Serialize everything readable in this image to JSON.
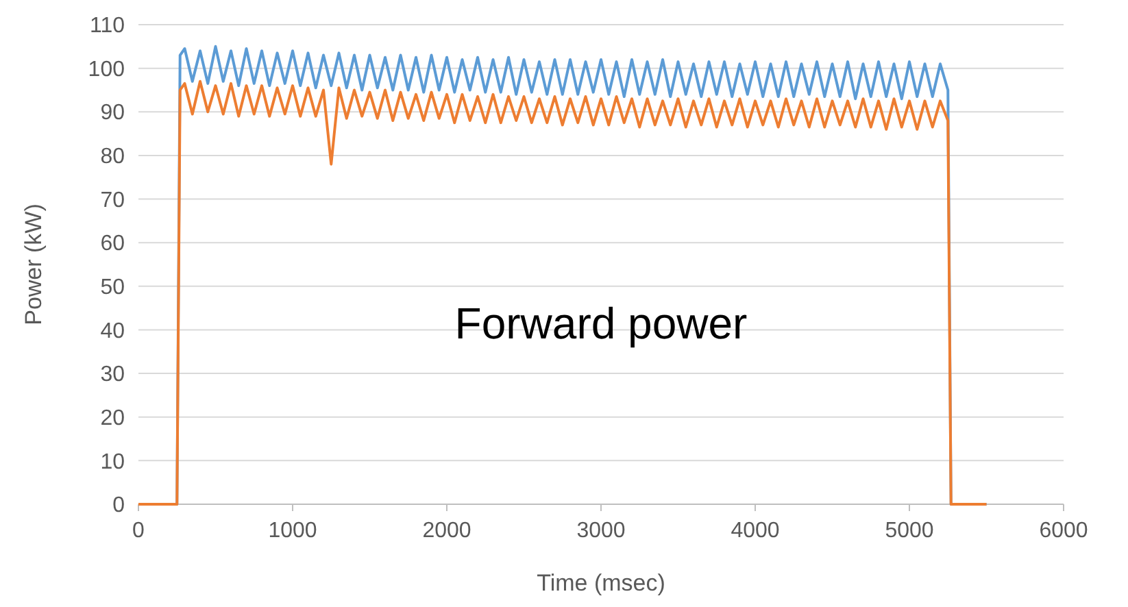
{
  "chart_data": {
    "type": "line",
    "xlabel": "Time (msec)",
    "ylabel": "Power (kW)",
    "annotations": [
      "Forward power"
    ],
    "x": [
      0,
      250,
      270,
      300,
      350,
      400,
      450,
      500,
      550,
      600,
      650,
      700,
      750,
      800,
      850,
      900,
      950,
      1000,
      1050,
      1100,
      1150,
      1200,
      1250,
      1300,
      1350,
      1400,
      1450,
      1500,
      1550,
      1600,
      1650,
      1700,
      1750,
      1800,
      1850,
      1900,
      1950,
      2000,
      2050,
      2100,
      2150,
      2200,
      2250,
      2300,
      2350,
      2400,
      2450,
      2500,
      2550,
      2600,
      2650,
      2700,
      2750,
      2800,
      2850,
      2900,
      2950,
      3000,
      3050,
      3100,
      3150,
      3200,
      3250,
      3300,
      3350,
      3400,
      3450,
      3500,
      3550,
      3600,
      3650,
      3700,
      3750,
      3800,
      3850,
      3900,
      3950,
      4000,
      4050,
      4100,
      4150,
      4200,
      4250,
      4300,
      4350,
      4400,
      4450,
      4500,
      4550,
      4600,
      4650,
      4700,
      4750,
      4800,
      4850,
      4900,
      4950,
      5000,
      5050,
      5100,
      5150,
      5200,
      5250,
      5270,
      5500
    ],
    "series": [
      {
        "color": "#5b9bd5",
        "values": [
          0,
          0,
          103,
          104.5,
          97,
          104,
          96.5,
          105,
          97,
          104,
          96,
          104.5,
          96.5,
          104,
          96,
          103.5,
          96.5,
          104,
          96,
          103.5,
          95.5,
          103,
          96,
          103.5,
          95.5,
          103,
          95,
          103,
          95.5,
          102.5,
          95,
          103,
          95,
          102.5,
          94.5,
          103,
          95,
          102.5,
          94.5,
          102,
          95,
          102.5,
          94.5,
          102,
          94.5,
          102.5,
          94,
          102,
          94.5,
          101.5,
          94,
          102,
          94,
          102,
          94,
          101.5,
          94.5,
          102,
          94,
          101.5,
          93.5,
          102,
          94,
          101.5,
          94,
          102,
          93.5,
          101.5,
          94,
          101,
          93.5,
          101.5,
          94,
          101.5,
          93.5,
          101,
          94,
          101.5,
          93.5,
          101,
          93.5,
          101.5,
          93.5,
          101,
          94,
          101.5,
          93.5,
          101,
          93.5,
          101.5,
          93,
          101,
          93.5,
          101.5,
          93.5,
          101,
          93,
          101.5,
          93.5,
          101,
          93.5,
          101,
          95,
          0,
          0
        ]
      },
      {
        "color": "#ed7d31",
        "values": [
          0,
          0,
          95,
          96.5,
          89.5,
          97,
          90,
          96,
          89.5,
          96.5,
          89,
          96,
          89.5,
          96,
          89,
          95.5,
          89.5,
          96,
          89,
          95.5,
          89,
          95,
          78,
          95.5,
          88.5,
          95,
          89,
          94.5,
          88.5,
          95,
          88,
          94.5,
          88.5,
          94,
          88,
          94.5,
          88.5,
          94,
          87.5,
          94,
          88,
          93.5,
          87.5,
          94,
          87.5,
          93.5,
          88,
          93.5,
          87.5,
          93,
          87.5,
          93.5,
          87,
          93,
          87.5,
          93.5,
          87,
          93,
          87,
          93.5,
          87.5,
          93,
          86.5,
          93,
          87,
          92.5,
          87,
          93,
          86.5,
          92.5,
          87,
          93,
          86.5,
          92.5,
          87,
          93,
          86.5,
          92.5,
          87,
          92.5,
          86.5,
          93,
          87,
          92.5,
          86.5,
          93,
          86.5,
          92.5,
          87,
          92.5,
          86.5,
          93,
          86.5,
          92.5,
          86,
          93,
          86.5,
          92.5,
          86,
          92.5,
          86.5,
          92.5,
          88,
          0,
          0
        ]
      }
    ],
    "xlim": [
      0,
      6000
    ],
    "xticks": [
      0,
      1000,
      2000,
      3000,
      4000,
      5000,
      6000
    ],
    "ylim": [
      0,
      110
    ],
    "yticks": [
      0,
      10,
      20,
      30,
      40,
      50,
      60,
      70,
      80,
      90,
      100,
      110
    ],
    "grid": "y"
  }
}
